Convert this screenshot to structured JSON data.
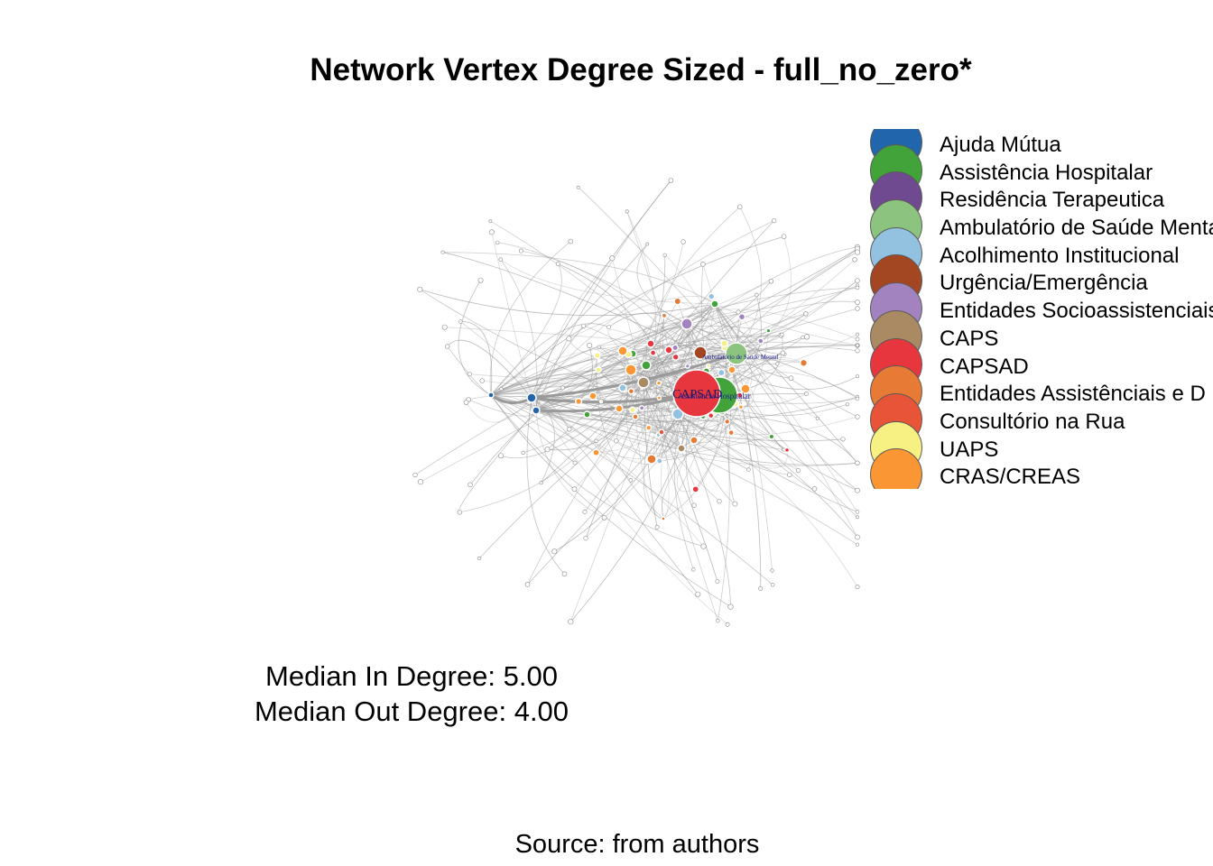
{
  "title": "Network Vertex Degree Sized - full_no_zero*",
  "legend": [
    {
      "label": "Ajuda Mútua",
      "color": "#2166ac"
    },
    {
      "label": "Assistência Hospitalar",
      "color": "#41a33a"
    },
    {
      "label": "Residência Terapeutica",
      "color": "#6f4a91"
    },
    {
      "label": "Ambulatório de Saúde Mental",
      "color": "#8cc47f"
    },
    {
      "label": "Acolhimento Institucional",
      "color": "#92c2e0"
    },
    {
      "label": "Urgência/Emergência",
      "color": "#a34722"
    },
    {
      "label": "Entidades Socioassistenciais",
      "color": "#a382c0"
    },
    {
      "label": "CAPS",
      "color": "#a98a63"
    },
    {
      "label": "CAPSAD",
      "color": "#e8363f"
    },
    {
      "label": "Entidades Assistênciais e D",
      "color": "#e77a34"
    },
    {
      "label": "Consultório na Rua",
      "color": "#e85437"
    },
    {
      "label": "UAPS",
      "color": "#f7f183"
    },
    {
      "label": "CRAS/CREAS",
      "color": "#fb9634"
    }
  ],
  "node_labels": {
    "capsad": "CAPSAD",
    "hospital": "Assistência Hospitalar",
    "ambulatorio": "Ambulatório de Saúde Mental"
  },
  "stats": {
    "median_in": "Median In Degree: 5.00",
    "median_out": "Median Out Degree: 4.00"
  },
  "source": "Source: from authors"
}
